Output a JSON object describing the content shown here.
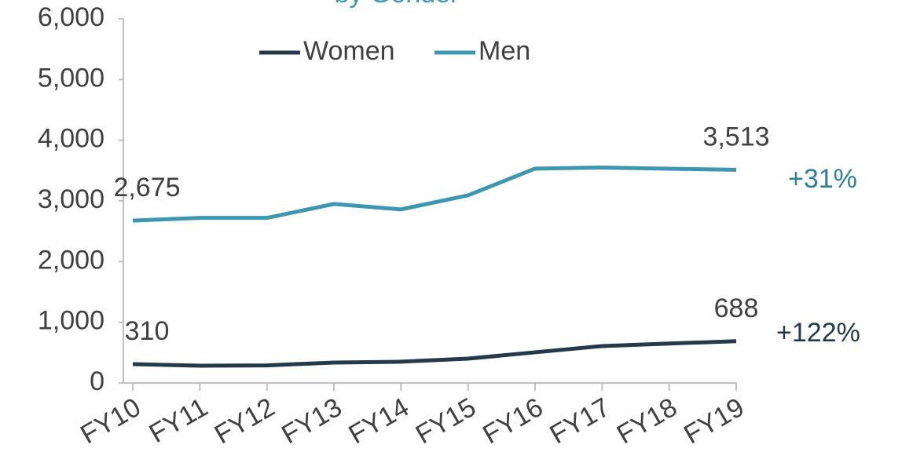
{
  "chart_data": {
    "type": "line",
    "title": "by Gender",
    "categories": [
      "FY10",
      "FY11",
      "FY12",
      "FY13",
      "FY14",
      "FY15",
      "FY16",
      "FY17",
      "FY18",
      "FY19"
    ],
    "series": [
      {
        "name": "Women",
        "color": "#243a4a",
        "values": [
          310,
          285,
          290,
          336,
          350,
          401,
          505,
          608,
          650,
          688
        ],
        "value_labels": [
          "310",
          null,
          null,
          null,
          null,
          null,
          null,
          null,
          null,
          "688"
        ]
      },
      {
        "name": "Men",
        "color": "#3d97b0",
        "values": [
          2675,
          2720,
          2720,
          2949,
          2860,
          3092,
          3532,
          3550,
          3530,
          3513
        ],
        "value_labels": [
          "2,675",
          null,
          null,
          null,
          null,
          null,
          null,
          null,
          null,
          "3,513"
        ]
      }
    ],
    "annotations": [
      {
        "text": "+122%",
        "color": "#243a4a"
      },
      {
        "text": "+31%",
        "color": "#2e7f96"
      }
    ],
    "ylim": [
      0,
      6000
    ],
    "yticks": [
      0,
      {
        "value": 1000,
        "label": "1,000"
      },
      {
        "value": 2000,
        "label": "2,000"
      },
      {
        "value": 3000,
        "label": "3,000"
      },
      {
        "value": 4000,
        "label": "4,000"
      },
      {
        "value": 5000,
        "label": "5,000"
      },
      {
        "value": 6000,
        "label": "6,000"
      }
    ],
    "grid": false,
    "legend": "top"
  }
}
